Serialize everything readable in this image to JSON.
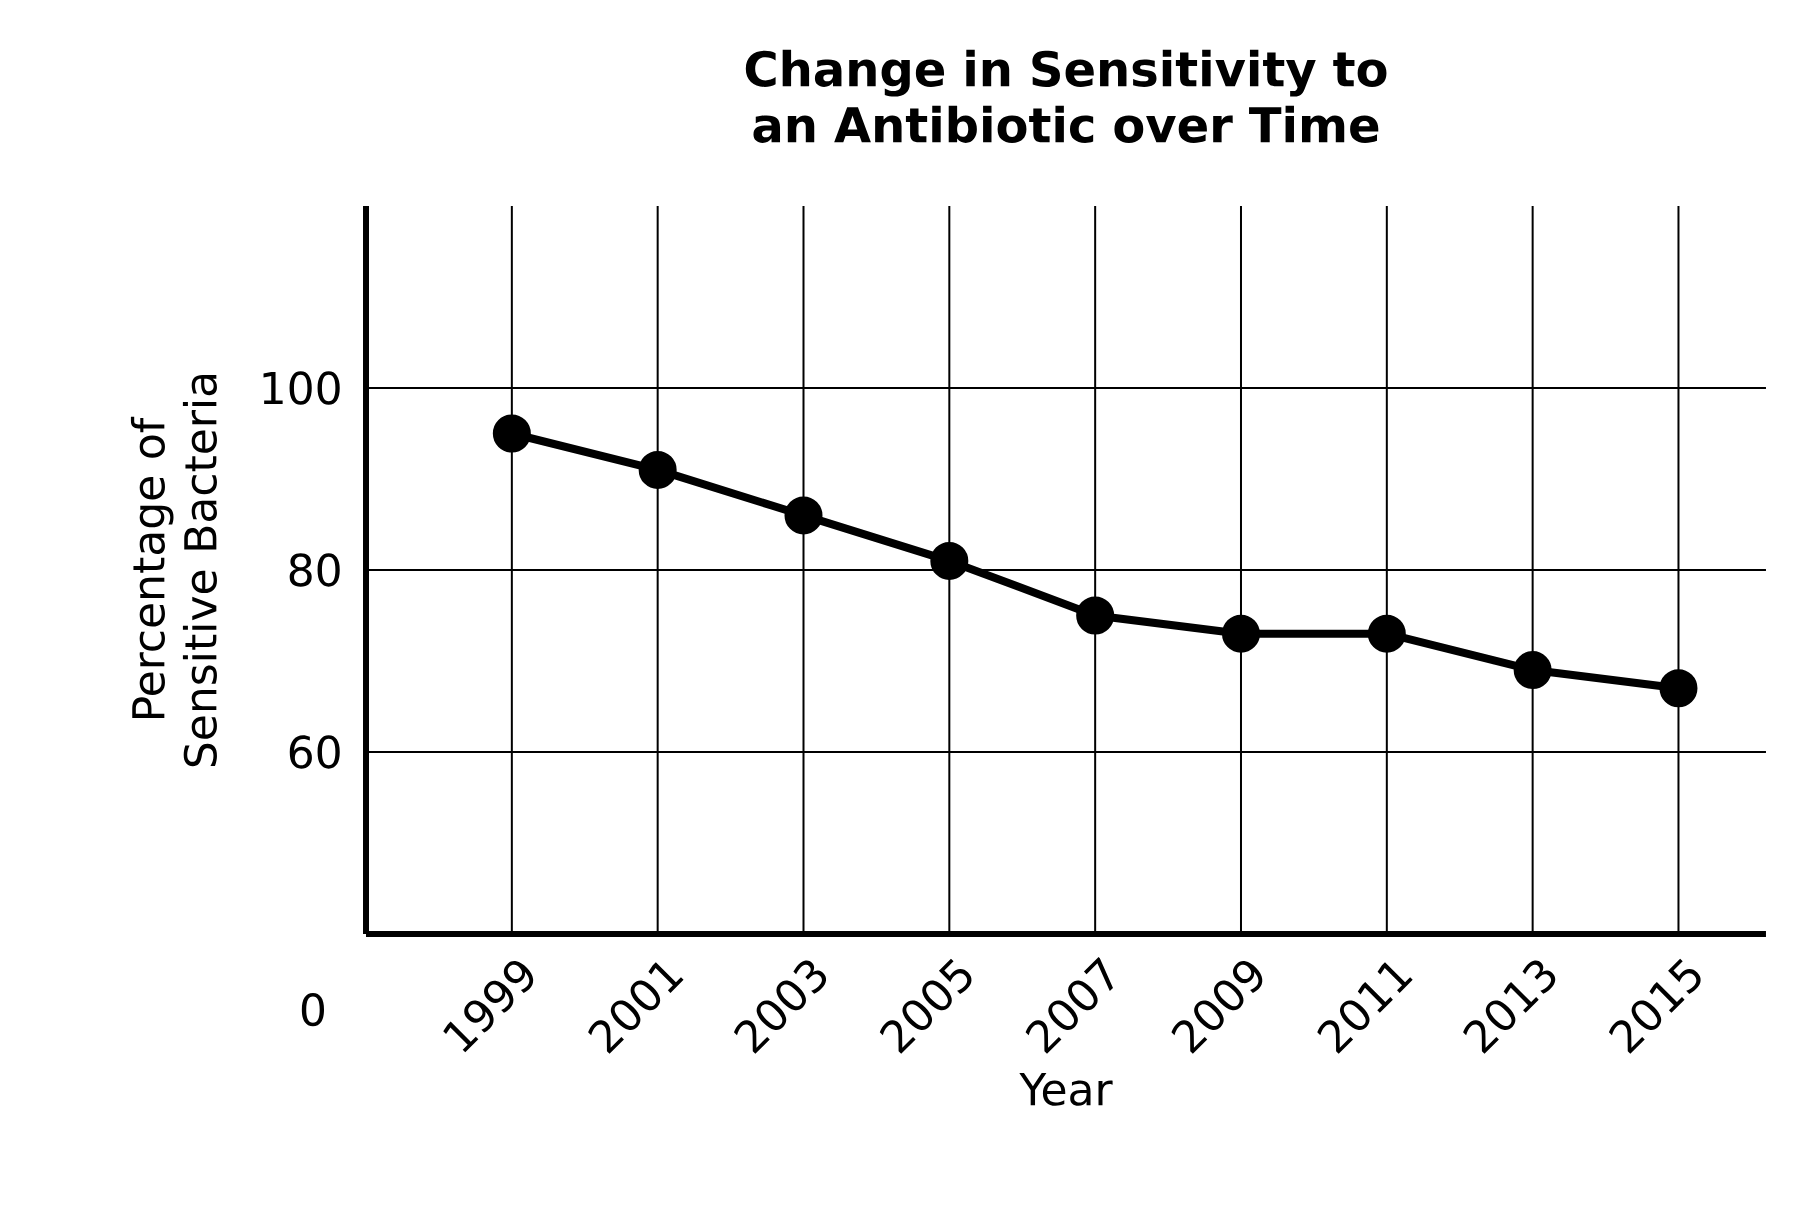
{
  "chart_data": {
    "type": "line",
    "title": "Change in Sensitivity to an Antibiotic over Time",
    "xlabel": "Year",
    "ylabel": "Percentage of Sensitive Bacteria",
    "categories": [
      "1999",
      "2001",
      "2003",
      "2005",
      "2007",
      "2009",
      "2011",
      "2013",
      "2015"
    ],
    "values": [
      95,
      91,
      86,
      81,
      75,
      73,
      73,
      69,
      67
    ],
    "color": "#000000",
    "marker": "circle",
    "line_style": "solid",
    "grid": true,
    "ylim": [
      40,
      120
    ],
    "yticks": [
      60,
      80,
      100
    ],
    "annotations": [
      "0"
    ]
  }
}
